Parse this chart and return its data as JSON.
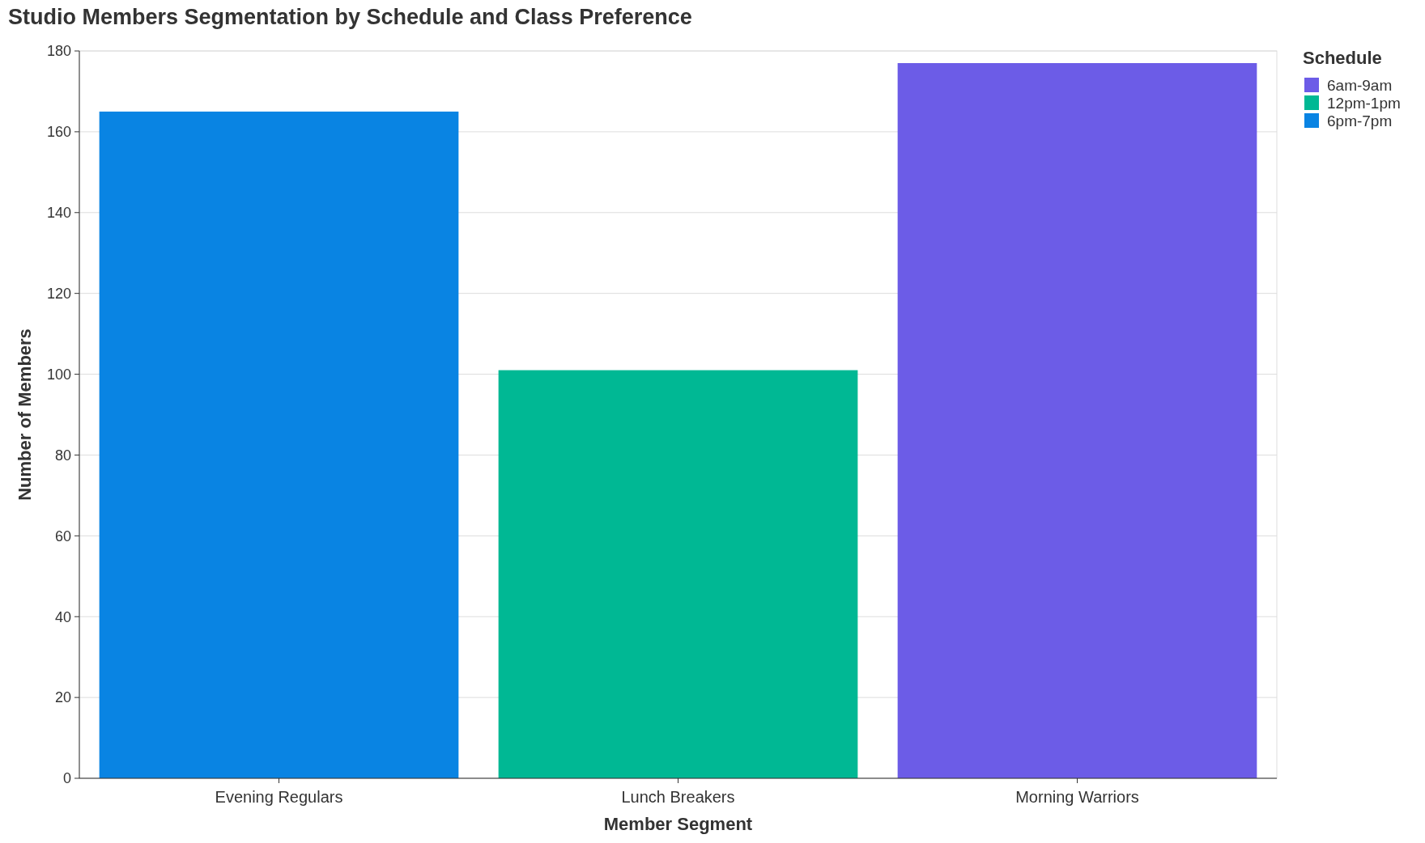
{
  "chart_data": {
    "type": "bar",
    "title": "Studio Members Segmentation by Schedule and Class Preference",
    "xlabel": "Member Segment",
    "ylabel": "Number of Members",
    "legend_title": "Schedule",
    "categories": [
      "Evening Regulars",
      "Lunch Breakers",
      "Morning Warriors"
    ],
    "series": [
      {
        "name": "6am-9am",
        "color": "#6c5ce7",
        "values": [
          null,
          null,
          177
        ]
      },
      {
        "name": "12pm-1pm",
        "color": "#00b894",
        "values": [
          null,
          101,
          null
        ]
      },
      {
        "name": "6pm-7pm",
        "color": "#0984e3",
        "values": [
          165,
          null,
          null
        ]
      }
    ],
    "ylim": [
      0,
      180
    ],
    "yticks": [
      0,
      20,
      40,
      60,
      80,
      100,
      120,
      140,
      160,
      180
    ],
    "grid": "y",
    "legend": "right"
  }
}
